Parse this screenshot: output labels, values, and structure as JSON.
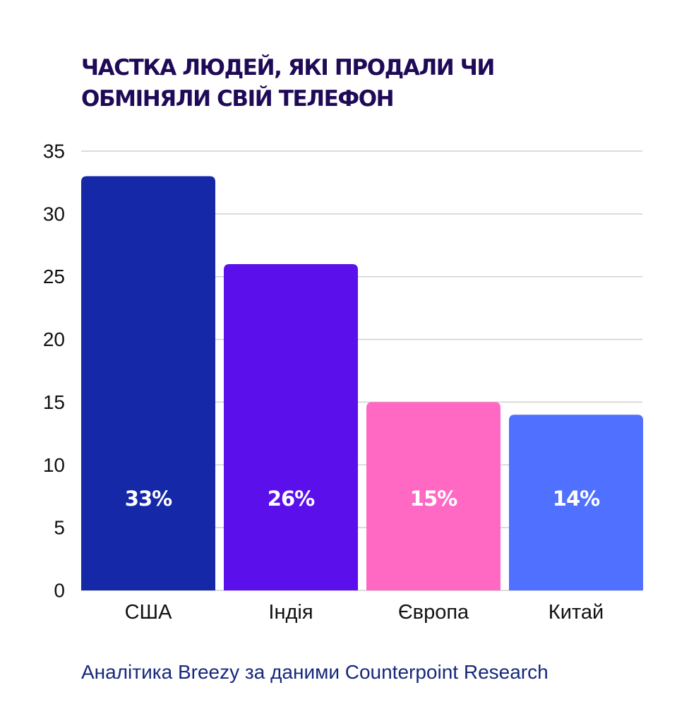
{
  "chart_data": {
    "type": "bar",
    "title_lines": [
      "ЧАСТКА ЛЮДЕЙ, ЯКІ ПРОДАЛИ ЧИ",
      "ОБМІНЯЛИ СВІЙ ТЕЛЕФОН"
    ],
    "categories": [
      "США",
      "Індія",
      "Європа",
      "Китай"
    ],
    "values": [
      33,
      26,
      15,
      14
    ],
    "data_labels": [
      "33%",
      "26%",
      "15%",
      "14%"
    ],
    "bar_colors": [
      "#1428a8",
      "#5a0feb",
      "#ff69c4",
      "#5070ff"
    ],
    "ylim": [
      0,
      35
    ],
    "yticks": [
      "0",
      "5",
      "10",
      "15",
      "20",
      "25",
      "30",
      "35"
    ],
    "grid": true,
    "source": "Аналітика Breezy за даними Counterpoint Research"
  },
  "colors": {
    "title": "#1f0a57",
    "source": "#16287c",
    "grid": "#d0d0d0",
    "axis_text": "#111111",
    "data_label": "#ffffff"
  }
}
